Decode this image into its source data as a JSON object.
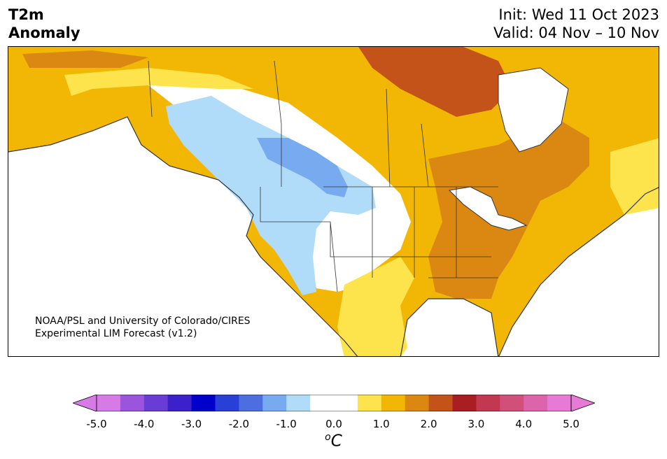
{
  "title": {
    "line1": "T2m",
    "line2": "Anomaly"
  },
  "header_right": {
    "init": "Init: Wed 11 Oct 2023",
    "valid": "Valid: 04 Nov – 10 Nov"
  },
  "credit": {
    "line1": "NOAA/PSL and University of Colorado/CIRES",
    "line2": "Experimental LIM Forecast (v1.2)"
  },
  "colorbar": {
    "colors": [
      "#d67ae6",
      "#9a55dc",
      "#6a3cd6",
      "#3b20cc",
      "#0000cc",
      "#2a3ed8",
      "#4c6ee0",
      "#78aaf0",
      "#b0dcfa",
      "#ffffff",
      "#ffffff",
      "#fde34c",
      "#f2b705",
      "#db8812",
      "#c4531a",
      "#a81e22",
      "#c23850",
      "#d0507a",
      "#dc64aa",
      "#e67ad4"
    ],
    "extend_low_color": "#d67ae6",
    "extend_high_color": "#e67ad4",
    "tick_labels": [
      "-5.0",
      "-4.0",
      "-3.0",
      "-2.0",
      "-1.0",
      "0.0",
      "1.0",
      "2.0",
      "3.0",
      "4.0",
      "5.0"
    ],
    "unit_main": "C",
    "unit_sup": "o"
  },
  "anomaly_palette": {
    "cold_light": "#b0dcfa",
    "cold_mid": "#78aaf0",
    "neutral": "#ffffff",
    "warm_light": "#fde34c",
    "warm_mid": "#f2b705",
    "warm_strong": "#db8812",
    "warm_stronger": "#c4531a"
  }
}
